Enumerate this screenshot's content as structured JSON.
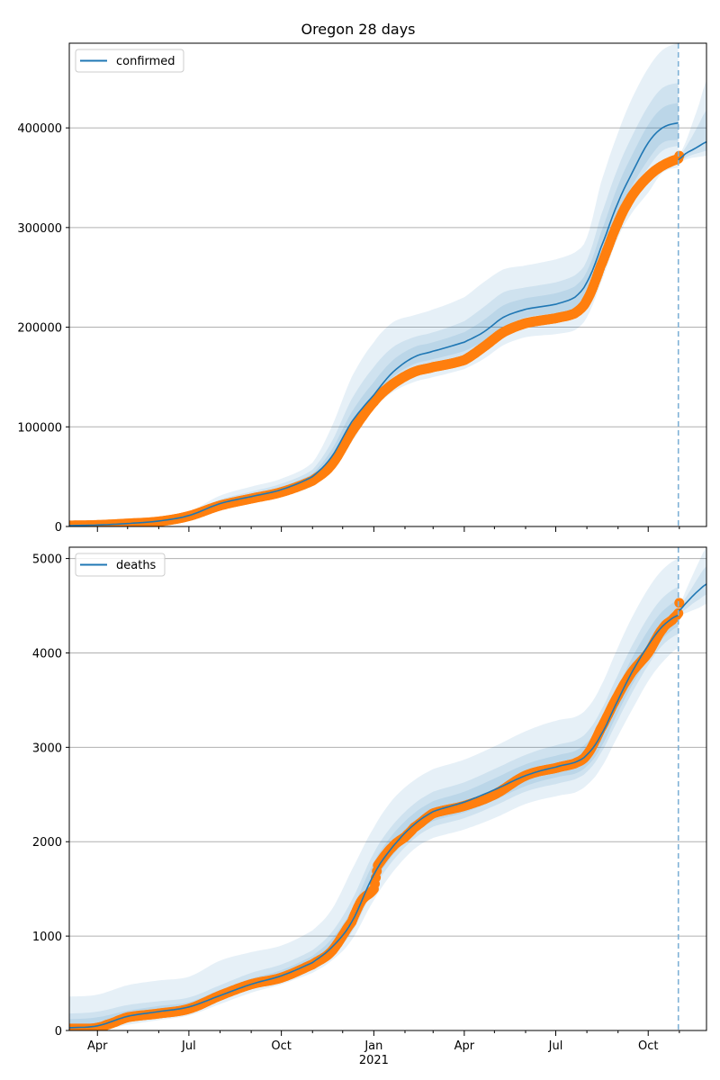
{
  "chart_data": {
    "type": "line",
    "title": "Oregon 28 days",
    "x_axis": {
      "type": "date",
      "start": "2020-03-04",
      "end": "2021-11-28",
      "tick_labels": [
        {
          "date": "2020-04-01",
          "label": "Apr"
        },
        {
          "date": "2020-07-01",
          "label": "Jul"
        },
        {
          "date": "2020-10-01",
          "label": "Oct"
        },
        {
          "date": "2021-01-01",
          "label": "Jan",
          "sublabel": "2021"
        },
        {
          "date": "2021-04-01",
          "label": "Apr"
        },
        {
          "date": "2021-07-01",
          "label": "Jul"
        },
        {
          "date": "2021-10-01",
          "label": "Oct"
        }
      ],
      "minor_ticks": [
        "2020-03-01",
        "2020-05-01",
        "2020-06-01",
        "2020-08-01",
        "2020-09-01",
        "2020-11-01",
        "2020-12-01",
        "2021-02-01",
        "2021-03-01",
        "2021-05-01",
        "2021-06-01",
        "2021-08-01",
        "2021-09-01",
        "2021-11-01",
        "2021-12-01"
      ],
      "vline_date": "2021-10-31"
    },
    "panels": [
      {
        "name": "confirmed",
        "legend": "confirmed",
        "legend_position": "upper-left",
        "ylim": [
          0,
          485000
        ],
        "yticks": [
          0,
          100000,
          200000,
          300000,
          400000
        ],
        "ytick_labels": [
          "0",
          "100000",
          "200000",
          "300000",
          "400000"
        ],
        "grid": true,
        "model": {
          "dates": [
            "2020-03-04",
            "2020-04-01",
            "2020-05-01",
            "2020-06-01",
            "2020-07-01",
            "2020-08-01",
            "2020-09-01",
            "2020-10-01",
            "2020-11-01",
            "2020-11-20",
            "2020-12-10",
            "2021-01-01",
            "2021-01-20",
            "2021-02-10",
            "2021-03-01",
            "2021-04-01",
            "2021-04-20",
            "2021-05-10",
            "2021-06-01",
            "2021-07-01",
            "2021-07-20",
            "2021-08-01",
            "2021-08-15",
            "2021-09-01",
            "2021-09-15",
            "2021-10-01",
            "2021-10-15",
            "2021-10-31"
          ],
          "mean": [
            1000,
            1500,
            3000,
            5500,
            11000,
            23000,
            30000,
            37000,
            50000,
            70000,
            105000,
            132000,
            155000,
            170000,
            176000,
            185000,
            195000,
            210000,
            218000,
            223000,
            230000,
            245000,
            280000,
            325000,
            355000,
            385000,
            400000,
            405000
          ],
          "band_outer_hi": [
            2000,
            3000,
            5000,
            8000,
            15000,
            31000,
            40000,
            48000,
            64000,
            100000,
            150000,
            185000,
            205000,
            212000,
            218000,
            230000,
            245000,
            258000,
            262000,
            268000,
            275000,
            290000,
            345000,
            395000,
            430000,
            460000,
            478000,
            485000
          ],
          "band_outer_lo": [
            500,
            800,
            1800,
            3800,
            9000,
            18000,
            24000,
            30000,
            40000,
            58000,
            85000,
            118000,
            135000,
            145000,
            150000,
            158000,
            168000,
            182000,
            190000,
            193000,
            197000,
            210000,
            245000,
            290000,
            315000,
            335000,
            355000,
            360000
          ],
          "band_mid_hi": [
            1500,
            2300,
            4000,
            7000,
            13000,
            27000,
            35000,
            43000,
            57000,
            85000,
            128000,
            160000,
            180000,
            190000,
            195000,
            206000,
            220000,
            235000,
            240000,
            245000,
            252000,
            267000,
            312000,
            360000,
            392000,
            422000,
            440000,
            445000
          ],
          "band_mid_lo": [
            700,
            1100,
            2400,
            4600,
            10000,
            20000,
            27000,
            33000,
            45000,
            63000,
            95000,
            125000,
            145000,
            157000,
            162000,
            170000,
            180000,
            195000,
            203000,
            207000,
            212000,
            225000,
            262000,
            305000,
            335000,
            360000,
            377000,
            382000
          ],
          "band_inner_hi": [
            1200,
            1800,
            3500,
            6200,
            12000,
            25000,
            32000,
            40000,
            53000,
            77000,
            115000,
            145000,
            167000,
            180000,
            185000,
            195000,
            207000,
            222000,
            229000,
            234000,
            241000,
            256000,
            295000,
            342000,
            373000,
            403000,
            420000,
            425000
          ],
          "band_inner_lo": [
            800,
            1300,
            2600,
            5000,
            10500,
            21000,
            28000,
            35000,
            47000,
            66000,
            98000,
            128000,
            150000,
            163000,
            168000,
            176000,
            186000,
            200000,
            210000,
            214000,
            219000,
            232000,
            268000,
            312000,
            342000,
            368000,
            385000,
            388000
          ]
        },
        "forecast": {
          "dates": [
            "2021-10-31",
            "2021-11-07",
            "2021-11-14",
            "2021-11-21",
            "2021-11-28"
          ],
          "mean": [
            368000,
            374000,
            378000,
            382000,
            386000
          ],
          "band_outer_hi": [
            372000,
            385000,
            405000,
            425000,
            448000
          ],
          "band_outer_lo": [
            364000,
            368000,
            370000,
            371000,
            372000
          ],
          "band_mid_hi": [
            370000,
            380000,
            392000,
            405000,
            418000
          ],
          "band_mid_lo": [
            366000,
            370000,
            373000,
            375000,
            377000
          ]
        },
        "observed": {
          "dates": [
            "2020-03-04",
            "2020-04-01",
            "2020-05-01",
            "2020-06-01",
            "2020-07-01",
            "2020-08-01",
            "2020-09-01",
            "2020-10-01",
            "2020-11-01",
            "2020-11-20",
            "2020-12-10",
            "2021-01-01",
            "2021-01-20",
            "2021-02-10",
            "2021-03-01",
            "2021-04-01",
            "2021-04-20",
            "2021-05-10",
            "2021-06-01",
            "2021-07-01",
            "2021-07-20",
            "2021-08-01",
            "2021-08-15",
            "2021-09-01",
            "2021-09-15",
            "2021-10-01",
            "2021-10-15",
            "2021-10-31",
            "2021-11-01"
          ],
          "values": [
            1000,
            1500,
            3000,
            5000,
            10500,
            21000,
            28000,
            34500,
            46000,
            62000,
            95000,
            125000,
            143000,
            155000,
            160000,
            167000,
            180000,
            195000,
            204000,
            209000,
            214000,
            227000,
            262000,
            305000,
            332000,
            351000,
            362000,
            369000,
            372000
          ]
        }
      },
      {
        "name": "deaths",
        "legend": "deaths",
        "legend_position": "upper-left",
        "ylim": [
          0,
          5120
        ],
        "yticks": [
          0,
          1000,
          2000,
          3000,
          4000,
          5000
        ],
        "ytick_labels": [
          "0",
          "1000",
          "2000",
          "3000",
          "4000",
          "5000"
        ],
        "grid": true,
        "model": {
          "dates": [
            "2020-03-04",
            "2020-04-01",
            "2020-05-01",
            "2020-06-01",
            "2020-07-01",
            "2020-08-01",
            "2020-09-01",
            "2020-10-01",
            "2020-11-01",
            "2020-11-20",
            "2020-12-10",
            "2021-01-01",
            "2021-01-20",
            "2021-02-10",
            "2021-03-01",
            "2021-04-01",
            "2021-05-01",
            "2021-06-01",
            "2021-07-01",
            "2021-07-20",
            "2021-08-01",
            "2021-08-15",
            "2021-09-01",
            "2021-09-15",
            "2021-10-01",
            "2021-10-15",
            "2021-10-31"
          ],
          "mean": [
            30,
            50,
            150,
            200,
            250,
            370,
            490,
            580,
            720,
            880,
            1150,
            1650,
            1950,
            2180,
            2320,
            2420,
            2550,
            2700,
            2790,
            2840,
            2920,
            3130,
            3500,
            3800,
            4080,
            4280,
            4400
          ],
          "band_outer_hi": [
            360,
            380,
            480,
            530,
            570,
            740,
            830,
            900,
            1060,
            1280,
            1700,
            2150,
            2450,
            2650,
            2770,
            2870,
            3010,
            3170,
            3280,
            3320,
            3410,
            3650,
            4060,
            4380,
            4680,
            4880,
            5000
          ],
          "band_outer_lo": [
            0,
            0,
            60,
            110,
            160,
            280,
            400,
            490,
            610,
            740,
            960,
            1380,
            1680,
            1920,
            2040,
            2130,
            2250,
            2400,
            2480,
            2520,
            2600,
            2780,
            3120,
            3400,
            3700,
            3900,
            4050
          ],
          "band_mid_hi": [
            180,
            200,
            270,
            310,
            350,
            480,
            610,
            700,
            850,
            1040,
            1380,
            1880,
            2180,
            2400,
            2530,
            2630,
            2770,
            2920,
            3020,
            3070,
            3160,
            3390,
            3770,
            4080,
            4380,
            4580,
            4700
          ],
          "band_mid_lo": [
            10,
            20,
            100,
            160,
            200,
            320,
            440,
            530,
            660,
            800,
            1040,
            1500,
            1800,
            2030,
            2160,
            2250,
            2380,
            2530,
            2610,
            2660,
            2740,
            2940,
            3290,
            3580,
            3870,
            4080,
            4200
          ],
          "band_inner_hi": [
            120,
            140,
            210,
            260,
            300,
            430,
            550,
            640,
            790,
            970,
            1280,
            1780,
            2080,
            2300,
            2430,
            2530,
            2670,
            2820,
            2910,
            2960,
            3050,
            3270,
            3640,
            3950,
            4240,
            4440,
            4560
          ],
          "band_inner_lo": [
            20,
            30,
            120,
            180,
            220,
            340,
            460,
            550,
            690,
            830,
            1080,
            1560,
            1860,
            2090,
            2220,
            2310,
            2440,
            2590,
            2680,
            2720,
            2800,
            3000,
            3370,
            3660,
            3940,
            4150,
            4280
          ]
        },
        "forecast": {
          "dates": [
            "2021-10-31",
            "2021-11-07",
            "2021-11-14",
            "2021-11-21",
            "2021-11-28"
          ],
          "mean": [
            4440,
            4520,
            4600,
            4670,
            4730
          ],
          "band_outer_hi": [
            4480,
            4650,
            4820,
            4980,
            5120
          ],
          "band_outer_lo": [
            4400,
            4420,
            4450,
            4480,
            4520
          ],
          "band_mid_hi": [
            4460,
            4580,
            4700,
            4820,
            4920
          ],
          "band_mid_lo": [
            4420,
            4460,
            4520,
            4570,
            4620
          ]
        },
        "observed": {
          "dates": [
            "2020-03-04",
            "2020-03-25",
            "2020-04-01",
            "2020-04-10",
            "2020-05-01",
            "2020-06-01",
            "2020-07-01",
            "2020-08-01",
            "2020-09-01",
            "2020-10-01",
            "2020-11-01",
            "2020-11-20",
            "2020-12-10",
            "2020-12-20",
            "2021-01-01",
            "2021-01-05",
            "2021-01-20",
            "2021-02-01",
            "2021-02-10",
            "2021-03-01",
            "2021-04-01",
            "2021-05-01",
            "2021-06-01",
            "2021-07-01",
            "2021-07-20",
            "2021-08-01",
            "2021-08-15",
            "2021-09-01",
            "2021-09-15",
            "2021-10-01",
            "2021-10-15",
            "2021-10-25",
            "2021-10-31",
            "2021-11-01"
          ],
          "values": [
            20,
            20,
            30,
            60,
            140,
            180,
            230,
            370,
            490,
            560,
            700,
            840,
            1150,
            1380,
            1500,
            1750,
            1950,
            2050,
            2150,
            2300,
            2380,
            2500,
            2700,
            2780,
            2830,
            2920,
            3200,
            3550,
            3800,
            4000,
            4250,
            4350,
            4420,
            4530
          ]
        }
      }
    ],
    "colors": {
      "line": "#1f77b4",
      "observed": "#ff7f0e",
      "band": "#1f77b4",
      "grid": "#b0b0b0",
      "vline": "#7fb1d6"
    }
  }
}
